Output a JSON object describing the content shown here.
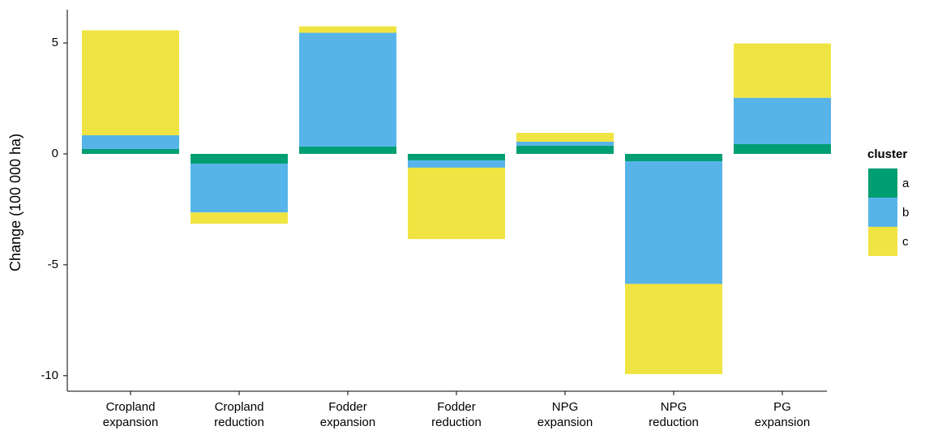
{
  "chart_data": {
    "type": "stacked_bar",
    "y_label": "Change (100 000 ha)",
    "categories": [
      "Cropland expansion",
      "Cropland reduction",
      "Fodder expansion",
      "Fodder reduction",
      "NPG expansion",
      "NPG reduction",
      "PG expansion"
    ],
    "legend_title": "cluster",
    "series": [
      {
        "name": "a",
        "color": "#009e73",
        "values": [
          0.22,
          -0.44,
          0.33,
          -0.29,
          0.37,
          -0.33,
          0.44
        ]
      },
      {
        "name": "b",
        "color": "#56b4e9",
        "values": [
          0.62,
          -2.2,
          5.13,
          -0.33,
          0.18,
          -5.53,
          2.09
        ]
      },
      {
        "name": "c",
        "color": "#f0e442",
        "values": [
          4.73,
          -0.51,
          0.29,
          -3.22,
          0.4,
          -4.07,
          2.45
        ]
      }
    ],
    "ylim": [
      -10.7,
      6.5
    ],
    "yticks": [
      5,
      0,
      -5,
      -10
    ],
    "grid": false,
    "legend": "right"
  }
}
